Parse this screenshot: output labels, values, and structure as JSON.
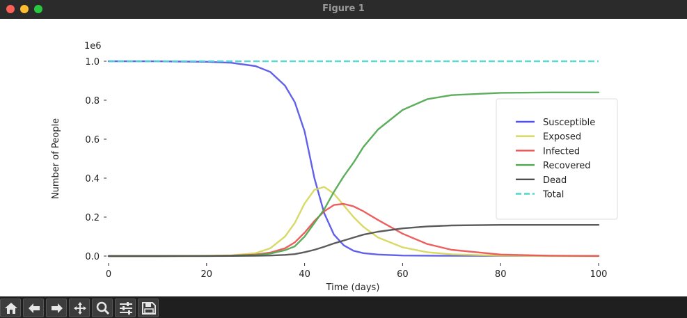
{
  "window": {
    "title": "Figure 1"
  },
  "toolbar": {
    "buttons": [
      {
        "name": "home-icon"
      },
      {
        "name": "back-arrow-icon"
      },
      {
        "name": "forward-arrow-icon"
      },
      {
        "name": "pan-move-icon"
      },
      {
        "name": "zoom-magnifier-icon"
      },
      {
        "name": "configure-subplots-icon"
      },
      {
        "name": "save-figure-icon"
      }
    ]
  },
  "chart_data": {
    "type": "line",
    "xlabel": "Time (days)",
    "ylabel": "Number of People",
    "y_offset_label": "1e6",
    "xlim": [
      0,
      100
    ],
    "ylim": [
      0,
      1.0
    ],
    "x_ticks": [
      "0",
      "20",
      "40",
      "60",
      "80",
      "100"
    ],
    "y_ticks": [
      "0.0",
      "0.2",
      "0.4",
      "0.6",
      "0.8",
      "1.0"
    ],
    "grid": false,
    "legend_position": "center-right",
    "x": [
      0,
      10,
      20,
      25,
      30,
      33,
      36,
      38,
      40,
      42,
      44,
      46,
      48,
      50,
      52,
      55,
      60,
      65,
      70,
      80,
      90,
      100
    ],
    "series": [
      {
        "name": "Susceptible",
        "color": "#5353e8",
        "style": "solid",
        "values": [
          1000000,
          999500,
          997000,
          992000,
          975000,
          945000,
          875000,
          790000,
          640000,
          400000,
          220000,
          110000,
          55000,
          27000,
          15000,
          8000,
          3000,
          2000,
          1500,
          1000,
          1000,
          1000
        ]
      },
      {
        "name": "Exposed",
        "color": "#d6d65a",
        "style": "solid",
        "values": [
          0,
          200,
          1500,
          4000,
          15000,
          40000,
          100000,
          170000,
          270000,
          340000,
          355000,
          320000,
          260000,
          200000,
          150000,
          95000,
          45000,
          20000,
          9000,
          2000,
          500,
          100
        ]
      },
      {
        "name": "Infected",
        "color": "#ec5151",
        "style": "solid",
        "values": [
          0,
          100,
          800,
          2500,
          8000,
          18000,
          40000,
          70000,
          120000,
          180000,
          230000,
          262000,
          268000,
          255000,
          230000,
          185000,
          115000,
          62000,
          32000,
          8000,
          2000,
          500
        ]
      },
      {
        "name": "Recovered",
        "color": "#4ea64e",
        "style": "solid",
        "values": [
          0,
          0,
          500,
          1500,
          5000,
          13000,
          30000,
          50000,
          100000,
          170000,
          240000,
          330000,
          410000,
          480000,
          560000,
          650000,
          750000,
          805000,
          826000,
          838000,
          840000,
          840000
        ]
      },
      {
        "name": "Dead",
        "color": "#4d4d4d",
        "style": "solid",
        "values": [
          0,
          0,
          200,
          600,
          1500,
          3000,
          6000,
          10000,
          20000,
          32000,
          48000,
          65000,
          80000,
          95000,
          110000,
          125000,
          142000,
          152000,
          157000,
          160000,
          160000,
          160000
        ]
      },
      {
        "name": "Total",
        "color": "#4dd6cc",
        "style": "dashed",
        "values": [
          1000000,
          1000000,
          1000000,
          1000000,
          1000000,
          1000000,
          1000000,
          1000000,
          1000000,
          1000000,
          1000000,
          1000000,
          1000000,
          1000000,
          1000000,
          1000000,
          1000000,
          1000000,
          1000000,
          1000000,
          1000000,
          1000000
        ]
      }
    ]
  }
}
